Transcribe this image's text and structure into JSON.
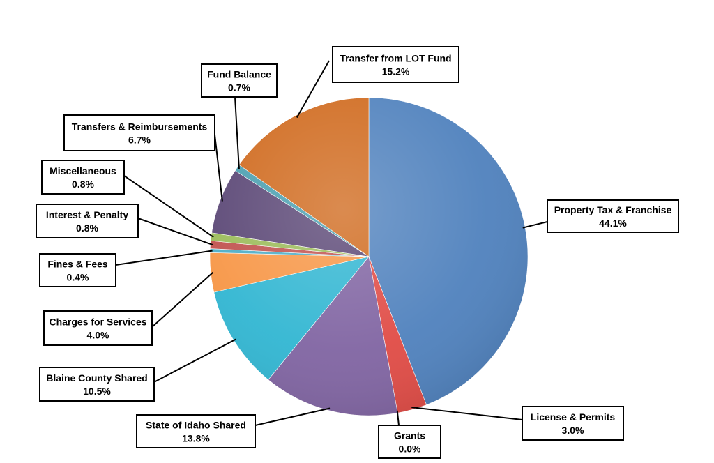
{
  "chart_data": {
    "type": "pie",
    "title": "",
    "labels": [
      "Property Tax & Franchise",
      "License & Permits",
      "Grants",
      "State of Idaho Shared",
      "Blaine County Shared",
      "Charges for Services",
      "Fines & Fees",
      "Interest & Penalty",
      "Miscellaneous",
      "Transfers & Reimbursements",
      "Fund Balance",
      "Transfer from LOT Fund"
    ],
    "values": [
      44.1,
      3.0,
      0.0,
      13.8,
      10.5,
      4.0,
      0.4,
      0.8,
      0.8,
      6.7,
      0.7,
      15.2
    ],
    "value_labels": [
      "44.1%",
      "3.0%",
      "0.0%",
      "13.8%",
      "10.5%",
      "4.0%",
      "0.4%",
      "0.8%",
      "0.8%",
      "6.7%",
      "0.7%",
      "15.2%"
    ],
    "colors": [
      "#4F81BD",
      "#E04B45",
      "#8EB4E3",
      "#8064A2",
      "#31B6D2",
      "#F79646",
      "#4BACC6",
      "#C0504D",
      "#9BBB59",
      "#5A4675",
      "#4A9FB0",
      "#D06A1E"
    ],
    "legend": "none"
  }
}
